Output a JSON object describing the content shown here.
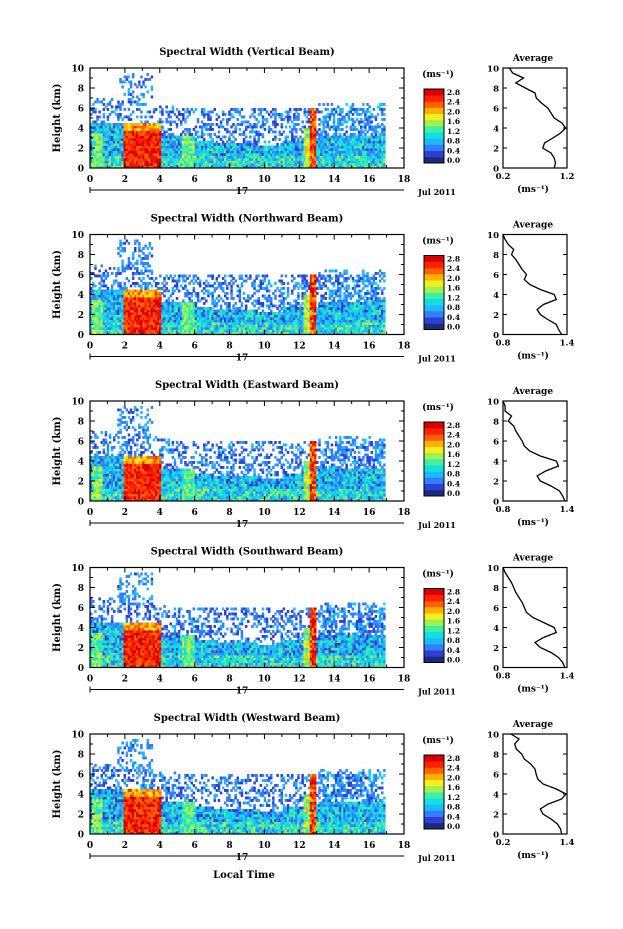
{
  "figure": {
    "xlabel": "Local Time",
    "date_label": "Jul 2011",
    "day_label": "17",
    "colorbar_unit": "(ms⁻¹)",
    "avg_title": "Average",
    "avg_unit": "(ms⁻¹)",
    "ylabel": "Height (km)",
    "colormap": [
      "#1a2a80",
      "#2f3fd0",
      "#2f7fff",
      "#1fb8ff",
      "#10e0e0",
      "#40f0a0",
      "#a0f050",
      "#f0f020",
      "#ffb000",
      "#ff6000",
      "#ff2000",
      "#d80000"
    ]
  },
  "chart_data": [
    {
      "type": "heatmap",
      "title": "Spectral Width (Vertical Beam)",
      "x_range": [
        0,
        18
      ],
      "x_ticks": [
        0,
        2,
        4,
        6,
        8,
        10,
        12,
        14,
        16,
        18
      ],
      "y_range": [
        0,
        10
      ],
      "y_ticks": [
        0,
        2,
        4,
        6,
        8,
        10
      ],
      "colorbar_ticks": [
        "2.8",
        "2.4",
        "2.0",
        "1.6",
        "1.2",
        "0.8",
        "0.4",
        "0.0"
      ],
      "average": {
        "xlim": [
          0.2,
          1.2
        ],
        "x_tick_labels": [
          "0.2",
          "1.2"
        ],
        "heights": [
          0,
          0.5,
          1,
          1.5,
          2,
          2.5,
          3,
          3.5,
          4,
          4.5,
          5,
          5.5,
          6,
          6.5,
          7,
          7.5,
          8,
          8.5,
          9,
          9.5,
          10
        ],
        "values": [
          1.0,
          1.02,
          1.0,
          0.95,
          0.82,
          0.85,
          0.98,
          1.1,
          1.18,
          1.12,
          1.0,
          0.95,
          0.9,
          0.8,
          0.72,
          0.7,
          0.55,
          0.4,
          0.52,
          0.35,
          0.3
        ]
      }
    },
    {
      "type": "heatmap",
      "title": "Spectral Width (Northward Beam)",
      "x_range": [
        0,
        18
      ],
      "x_ticks": [
        0,
        2,
        4,
        6,
        8,
        10,
        12,
        14,
        16,
        18
      ],
      "y_range": [
        0,
        10
      ],
      "y_ticks": [
        0,
        2,
        4,
        6,
        8,
        10
      ],
      "colorbar_ticks": [
        "2.8",
        "2.4",
        "2.0",
        "1.6",
        "1.2",
        "0.8",
        "0.4",
        "0.0"
      ],
      "average": {
        "xlim": [
          0.8,
          1.4
        ],
        "x_tick_labels": [
          "0.8",
          "1.4"
        ],
        "heights": [
          0,
          0.5,
          1,
          1.5,
          2,
          2.5,
          3,
          3.5,
          4,
          4.5,
          5,
          5.5,
          6,
          6.5,
          7,
          7.5,
          8,
          8.5,
          9,
          9.5,
          10
        ],
        "values": [
          1.35,
          1.32,
          1.3,
          1.22,
          1.15,
          1.12,
          1.18,
          1.3,
          1.28,
          1.15,
          1.05,
          1.0,
          1.02,
          0.98,
          0.95,
          0.92,
          0.88,
          0.9,
          0.85,
          0.82,
          0.8
        ]
      }
    },
    {
      "type": "heatmap",
      "title": "Spectral Width (Eastward Beam)",
      "x_range": [
        0,
        18
      ],
      "x_ticks": [
        0,
        2,
        4,
        6,
        8,
        10,
        12,
        14,
        16,
        18
      ],
      "y_range": [
        0,
        10
      ],
      "y_ticks": [
        0,
        2,
        4,
        6,
        8,
        10
      ],
      "colorbar_ticks": [
        "2.8",
        "2.4",
        "2.0",
        "1.6",
        "1.2",
        "0.8",
        "0.4",
        "0.0"
      ],
      "average": {
        "xlim": [
          0.8,
          1.4
        ],
        "x_tick_labels": [
          "0.8",
          "1.4"
        ],
        "heights": [
          0,
          0.5,
          1,
          1.5,
          2,
          2.5,
          3,
          3.5,
          4,
          4.5,
          5,
          5.5,
          6,
          6.5,
          7,
          7.5,
          8,
          8.5,
          9,
          9.5,
          10
        ],
        "values": [
          1.38,
          1.36,
          1.33,
          1.25,
          1.15,
          1.12,
          1.2,
          1.32,
          1.3,
          1.15,
          1.05,
          1.0,
          0.98,
          0.95,
          0.92,
          0.9,
          0.85,
          0.88,
          0.82,
          0.82,
          0.8
        ]
      }
    },
    {
      "type": "heatmap",
      "title": "Spectral Width (Southward Beam)",
      "x_range": [
        0,
        18
      ],
      "x_ticks": [
        0,
        2,
        4,
        6,
        8,
        10,
        12,
        14,
        16,
        18
      ],
      "y_range": [
        0,
        10
      ],
      "y_ticks": [
        0,
        2,
        4,
        6,
        8,
        10
      ],
      "colorbar_ticks": [
        "2.8",
        "2.4",
        "2.0",
        "1.6",
        "1.2",
        "0.8",
        "0.4",
        "0.0"
      ],
      "average": {
        "xlim": [
          0.8,
          1.4
        ],
        "x_tick_labels": [
          "0.8",
          "1.4"
        ],
        "heights": [
          0,
          0.5,
          1,
          1.5,
          2,
          2.5,
          3,
          3.5,
          4,
          4.5,
          5,
          5.5,
          6,
          6.5,
          7,
          7.5,
          8,
          8.5,
          9,
          9.5,
          10
        ],
        "values": [
          1.38,
          1.36,
          1.32,
          1.25,
          1.15,
          1.1,
          1.18,
          1.3,
          1.28,
          1.18,
          1.08,
          1.02,
          1.0,
          0.98,
          0.95,
          0.92,
          0.9,
          0.88,
          0.85,
          0.82,
          0.8
        ]
      }
    },
    {
      "type": "heatmap",
      "title": "Spectral Width (Westward Beam)",
      "x_range": [
        0,
        18
      ],
      "x_ticks": [
        0,
        2,
        4,
        6,
        8,
        10,
        12,
        14,
        16,
        18
      ],
      "y_range": [
        0,
        10
      ],
      "y_ticks": [
        0,
        2,
        4,
        6,
        8,
        10
      ],
      "colorbar_ticks": [
        "2.8",
        "2.4",
        "2.0",
        "1.6",
        "1.2",
        "0.8",
        "0.4",
        "0.0"
      ],
      "average": {
        "xlim": [
          0.2,
          1.4
        ],
        "x_tick_labels": [
          "0.2",
          "1.4"
        ],
        "heights": [
          0,
          0.5,
          1,
          1.5,
          2,
          2.5,
          3,
          3.5,
          4,
          4.5,
          5,
          5.5,
          6,
          6.5,
          7,
          7.5,
          8,
          8.5,
          9,
          9.5,
          10
        ],
        "values": [
          1.3,
          1.28,
          1.22,
          1.1,
          0.95,
          0.9,
          1.05,
          1.3,
          1.38,
          1.2,
          0.95,
          0.85,
          0.82,
          0.8,
          0.72,
          0.6,
          0.55,
          0.45,
          0.42,
          0.5,
          0.35
        ]
      }
    }
  ]
}
